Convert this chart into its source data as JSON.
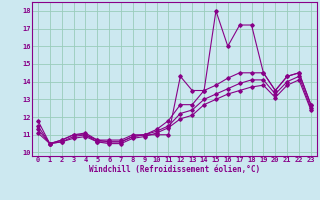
{
  "xlabel": "Windchill (Refroidissement éolien,°C)",
  "background_color": "#cce8f0",
  "grid_color": "#99ccbb",
  "line_color": "#880088",
  "xlim": [
    -0.5,
    23.5
  ],
  "ylim": [
    9.8,
    18.5
  ],
  "xticks": [
    0,
    1,
    2,
    3,
    4,
    5,
    6,
    7,
    8,
    9,
    10,
    11,
    12,
    13,
    14,
    15,
    16,
    17,
    18,
    19,
    20,
    21,
    22,
    23
  ],
  "yticks": [
    10,
    11,
    12,
    13,
    14,
    15,
    16,
    17,
    18
  ],
  "series": [
    [
      11.8,
      10.5,
      10.7,
      11.0,
      11.1,
      10.7,
      10.7,
      10.7,
      11.0,
      11.0,
      11.0,
      11.0,
      14.3,
      13.5,
      13.5,
      18.0,
      16.0,
      17.2,
      17.2,
      14.5,
      13.5,
      14.3,
      14.5,
      12.7
    ],
    [
      11.5,
      10.5,
      10.7,
      11.0,
      11.0,
      10.7,
      10.6,
      10.6,
      10.9,
      11.0,
      11.3,
      11.8,
      12.7,
      12.7,
      13.5,
      13.8,
      14.2,
      14.5,
      14.5,
      14.5,
      13.5,
      14.3,
      14.5,
      12.7
    ],
    [
      11.3,
      10.5,
      10.6,
      10.9,
      11.0,
      10.6,
      10.6,
      10.6,
      10.9,
      11.0,
      11.2,
      11.5,
      12.2,
      12.4,
      13.0,
      13.3,
      13.6,
      13.9,
      14.1,
      14.1,
      13.3,
      14.0,
      14.3,
      12.5
    ],
    [
      11.1,
      10.5,
      10.6,
      10.8,
      10.9,
      10.6,
      10.5,
      10.5,
      10.8,
      10.9,
      11.1,
      11.4,
      11.9,
      12.1,
      12.7,
      13.0,
      13.3,
      13.5,
      13.7,
      13.8,
      13.1,
      13.8,
      14.1,
      12.4
    ]
  ]
}
